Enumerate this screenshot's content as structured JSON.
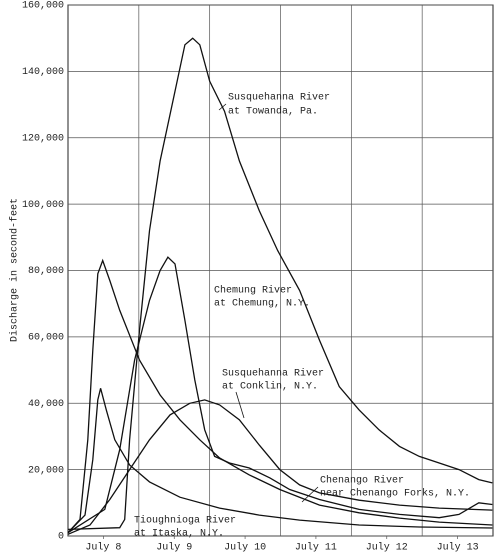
{
  "chart_data": {
    "type": "line",
    "y_label": "Discharge in second-feet",
    "xlim": [
      0,
      6
    ],
    "xticks": [
      {
        "value": 0.5,
        "label": "July 8"
      },
      {
        "value": 1.5,
        "label": "July 9"
      },
      {
        "value": 2.5,
        "label": "July 10"
      },
      {
        "value": 3.5,
        "label": "July 11"
      },
      {
        "value": 4.5,
        "label": "July 12"
      },
      {
        "value": 5.5,
        "label": "July 13"
      }
    ],
    "xgrid": [
      1,
      2,
      3,
      4,
      5
    ],
    "ylim": [
      0,
      160000
    ],
    "yticks": [
      0,
      {
        "value": 20000,
        "label": "20,000"
      },
      {
        "value": 40000,
        "label": "40,000"
      },
      {
        "value": 60000,
        "label": "60,000"
      },
      {
        "value": 80000,
        "label": "80,000"
      },
      {
        "value": 100000,
        "label": "100,000"
      },
      {
        "value": 120000,
        "label": "120,000"
      },
      {
        "value": 140000,
        "label": "140,000"
      },
      {
        "value": 160000,
        "label": "160,000"
      }
    ],
    "grid": true,
    "series": [
      {
        "name": [
          "Susquehanna River",
          "at Towanda, Pa."
        ],
        "color": "#111",
        "x": [
          0,
          0.73,
          0.8,
          0.87,
          1.01,
          1.15,
          1.3,
          1.51,
          1.65,
          1.76,
          1.86,
          2.0,
          2.21,
          2.42,
          2.7,
          2.96,
          3.27,
          3.55,
          3.83,
          4.11,
          4.39,
          4.68,
          4.96,
          5.24,
          5.52,
          5.8,
          5.99
        ],
        "values": [
          2000,
          2500,
          5000,
          29000,
          62000,
          92000,
          113000,
          134000,
          148000,
          150000,
          148000,
          137000,
          128000,
          113000,
          98000,
          86000,
          74000,
          59000,
          45000,
          38000,
          32000,
          27000,
          24000,
          22000,
          20000,
          17000,
          16000
        ]
      },
      {
        "name": [
          "Chemung River",
          "at Chemung, N.Y."
        ],
        "color": "#111",
        "x": [
          0,
          0.52,
          0.73,
          0.94,
          1.15,
          1.3,
          1.41,
          1.51,
          1.65,
          1.79,
          1.93,
          2.07,
          2.28,
          2.56,
          2.85,
          3.13,
          3.55,
          4.11,
          4.68,
          5.24,
          5.52,
          5.8,
          5.99
        ],
        "values": [
          1000,
          8000,
          26000,
          53000,
          71000,
          80000,
          84000,
          82000,
          65000,
          47000,
          32000,
          24000,
          22000,
          20500,
          17500,
          14000,
          11000,
          8000,
          6500,
          5500,
          6500,
          10000,
          9500
        ]
      },
      {
        "name": [
          "Tioughnioga River",
          "at Itaska, N.Y."
        ],
        "color": "#111",
        "x": [
          0,
          0.17,
          0.28,
          0.35,
          0.42,
          0.49,
          0.59,
          0.73,
          1.01,
          1.3,
          1.58,
          1.86,
          2.14,
          2.56,
          2.99,
          3.55,
          4.11,
          4.68,
          5.24,
          5.99
        ],
        "values": [
          1000,
          5000,
          29000,
          56000,
          79000,
          83000,
          77000,
          68000,
          53000,
          42500,
          35000,
          29000,
          23500,
          18400,
          14000,
          9300,
          7000,
          5400,
          4200,
          3300
        ]
      },
      {
        "name": [
          "Chenango River",
          "near Chenango Forks, N.Y."
        ],
        "color": "#111",
        "x": [
          0,
          0.24,
          0.35,
          0.42,
          0.46,
          0.54,
          0.66,
          0.87,
          1.15,
          1.58,
          2.14,
          2.7,
          3.27,
          4.11,
          4.96,
          5.99
        ],
        "values": [
          1000,
          6300,
          23000,
          41000,
          44500,
          38000,
          29000,
          21400,
          16300,
          11700,
          8400,
          6300,
          4800,
          3300,
          2700,
          2400
        ]
      },
      {
        "name": [
          "Susquehanna River",
          "at Conklin, N.Y."
        ],
        "color": "#111",
        "x": [
          0,
          0.31,
          0.59,
          0.87,
          1.15,
          1.44,
          1.72,
          1.93,
          2.14,
          2.42,
          2.7,
          2.99,
          3.27,
          3.55,
          4.11,
          4.68,
          5.24,
          5.99
        ],
        "values": [
          500,
          3300,
          11000,
          20000,
          29000,
          36500,
          40000,
          41000,
          39500,
          35000,
          27400,
          20000,
          15400,
          13000,
          10800,
          9300,
          8400,
          7800
        ]
      }
    ]
  }
}
